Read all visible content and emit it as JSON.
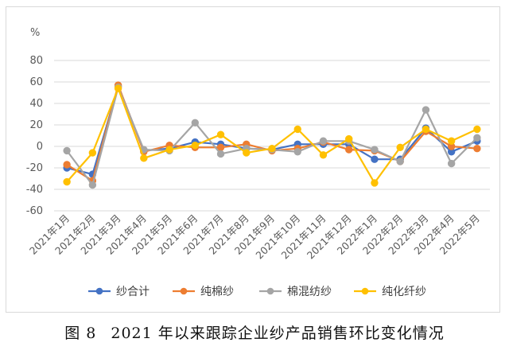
{
  "caption": {
    "label": "图 8",
    "text": "2021 年以来跟踪企业纱产品销售环比变化情况"
  },
  "chart_data": {
    "type": "line",
    "unit_label": "%",
    "ylim": [
      -60,
      80
    ],
    "yticks": [
      -60,
      -40,
      -20,
      0,
      20,
      40,
      60,
      80
    ],
    "grid": true,
    "legend_position": "bottom",
    "categories": [
      "2021年1月",
      "2021年2月",
      "2021年3月",
      "2021年4月",
      "2021年5月",
      "2021年6月",
      "2021年7月",
      "2021年8月",
      "2021年9月",
      "2021年10月",
      "2021年11月",
      "2021年12月",
      "2022年1月",
      "2022年2月",
      "2022年3月",
      "2022年4月",
      "2022年5月"
    ],
    "series": [
      {
        "name": "纱合计",
        "color": "#4472C4",
        "values": [
          -20,
          -26,
          56,
          -4,
          -2,
          4,
          2,
          -2,
          -3,
          2,
          2,
          2,
          -12,
          -12,
          17,
          -5,
          5
        ]
      },
      {
        "name": "纯棉纱",
        "color": "#ED7D31",
        "values": [
          -17,
          -32,
          57,
          -5,
          1,
          -1,
          -1,
          2,
          -4,
          -2,
          4,
          -3,
          -4,
          -14,
          14,
          0,
          -2
        ]
      },
      {
        "name": "棉混纺纱",
        "color": "#A5A5A5",
        "values": [
          -4,
          -36,
          55,
          -3,
          -4,
          22,
          -7,
          -2,
          -3,
          -5,
          5,
          5,
          -3,
          -14,
          34,
          -16,
          8
        ]
      },
      {
        "name": "纯化纤纱",
        "color": "#FFC000",
        "values": [
          -33,
          -6,
          54,
          -11,
          -3,
          1,
          11,
          -6,
          -2,
          16,
          -8,
          7,
          -34,
          -1,
          16,
          5,
          16
        ]
      }
    ]
  }
}
